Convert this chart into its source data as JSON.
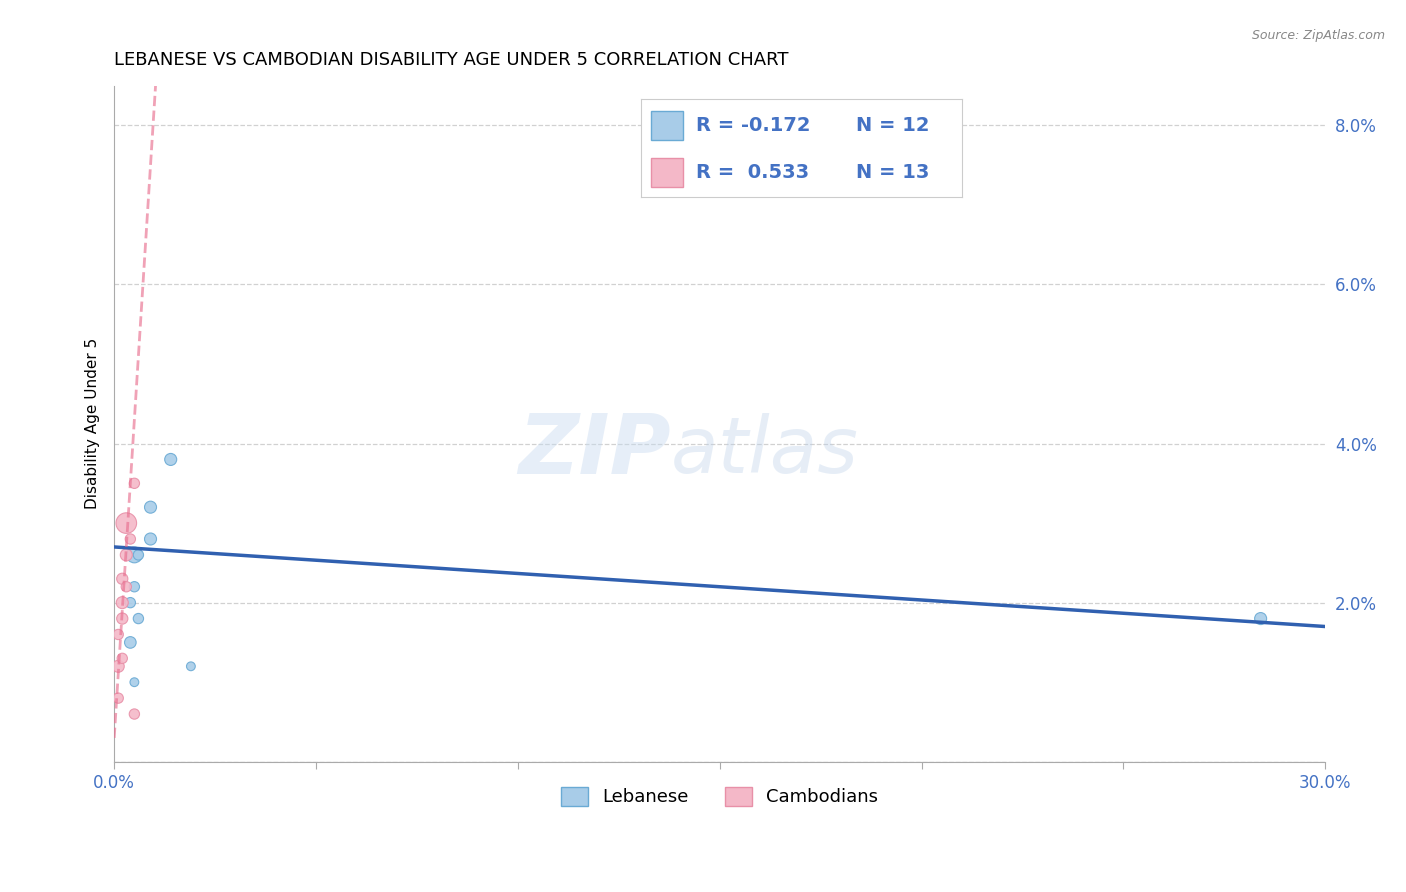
{
  "title": "LEBANESE VS CAMBODIAN DISABILITY AGE UNDER 5 CORRELATION CHART",
  "source_text": "Source: ZipAtlas.com",
  "ylabel": "Disability Age Under 5",
  "xlim": [
    0.0,
    0.3
  ],
  "ylim": [
    0.0,
    0.085
  ],
  "xticks": [
    0.0,
    0.05,
    0.1,
    0.15,
    0.2,
    0.25,
    0.3
  ],
  "xticklabels": [
    "0.0%",
    "",
    "",
    "",
    "",
    "",
    "30.0%"
  ],
  "yticks": [
    0.0,
    0.02,
    0.04,
    0.06,
    0.08
  ],
  "yticklabels": [
    "",
    "2.0%",
    "4.0%",
    "6.0%",
    "8.0%"
  ],
  "lebanese_x": [
    0.004,
    0.004,
    0.005,
    0.005,
    0.005,
    0.006,
    0.006,
    0.009,
    0.009,
    0.014,
    0.019,
    0.284
  ],
  "lebanese_y": [
    0.015,
    0.02,
    0.022,
    0.026,
    0.01,
    0.018,
    0.026,
    0.028,
    0.032,
    0.038,
    0.012,
    0.018
  ],
  "lebanese_sizes": [
    70,
    55,
    55,
    130,
    40,
    55,
    55,
    75,
    75,
    75,
    40,
    75
  ],
  "cambodian_x": [
    0.001,
    0.001,
    0.001,
    0.002,
    0.002,
    0.002,
    0.002,
    0.003,
    0.003,
    0.003,
    0.004,
    0.005,
    0.005
  ],
  "cambodian_y": [
    0.008,
    0.012,
    0.016,
    0.013,
    0.018,
    0.02,
    0.023,
    0.022,
    0.026,
    0.03,
    0.028,
    0.035,
    0.006
  ],
  "cambodian_sizes": [
    55,
    75,
    55,
    55,
    65,
    75,
    65,
    55,
    75,
    220,
    55,
    55,
    55
  ],
  "lebanese_color": "#a8cce8",
  "lebanese_edge_color": "#6aaad4",
  "cambodian_color": "#f4b8c8",
  "cambodian_edge_color": "#e890a8",
  "blue_line_color": "#3060b0",
  "pink_line_color": "#e87090",
  "legend_text_color": "#4472c4",
  "tick_color": "#4472c4",
  "background_color": "#ffffff",
  "grid_color": "#cccccc",
  "title_fontsize": 13,
  "axis_label_fontsize": 11,
  "tick_fontsize": 12,
  "legend_fontsize": 14
}
